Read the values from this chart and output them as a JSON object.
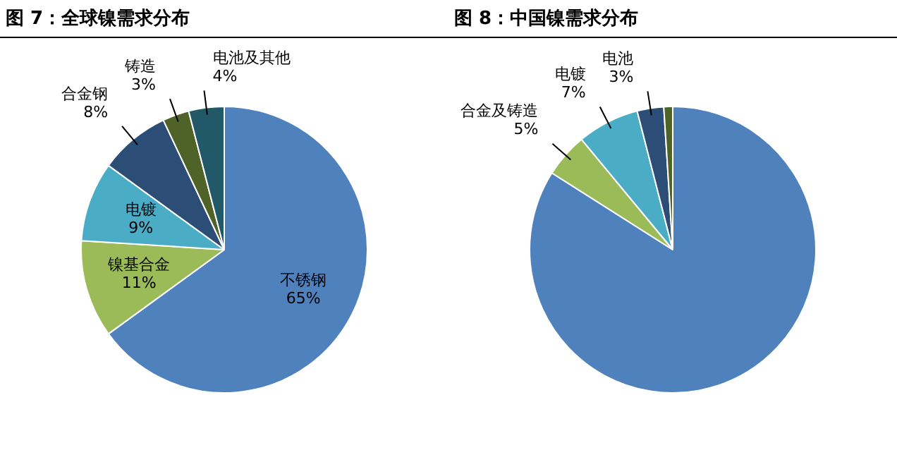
{
  "chart_data": [
    {
      "type": "pie",
      "title": "图 7：全球镍需求分布",
      "categories": [
        "不锈钢",
        "镍基合金",
        "电镀",
        "合金钢",
        "铸造",
        "电池及其他"
      ],
      "values": [
        65,
        11,
        9,
        8,
        3,
        4
      ],
      "value_labels": [
        "65%",
        "11%",
        "9%",
        "8%",
        "3%",
        "4%"
      ],
      "colors": [
        "#4f81bd",
        "#9bbb59",
        "#4bacc6",
        "#2c4d75",
        "#4f6228",
        "#215968"
      ]
    },
    {
      "type": "pie",
      "title": "图 8：中国镍需求分布",
      "categories": [
        null,
        "合金及铸造",
        "电镀",
        "电池",
        null
      ],
      "values": [
        84,
        5,
        7,
        3,
        1
      ],
      "value_labels": [
        null,
        "5%",
        "7%",
        "3%",
        null
      ],
      "colors": [
        "#4f81bd",
        "#9bbb59",
        "#4bacc6",
        "#2c4d75",
        "#4f6228"
      ]
    }
  ]
}
